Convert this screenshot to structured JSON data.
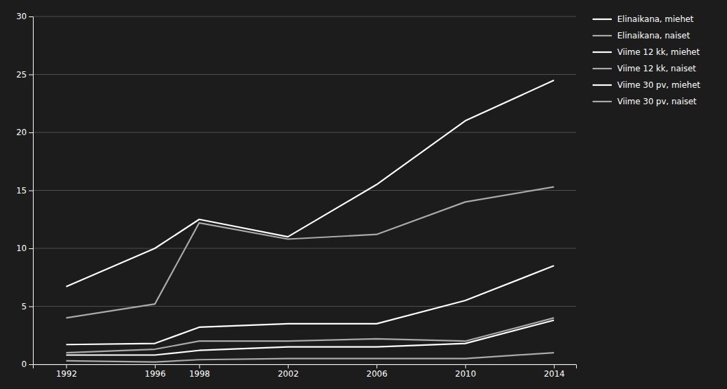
{
  "chart_data": {
    "type": "line",
    "x": [
      1992,
      1996,
      1998,
      2002,
      2006,
      2010,
      2014
    ],
    "series": [
      {
        "name": "Elinaikana, miehet",
        "color": "#ffffff",
        "values": [
          6.7,
          10.0,
          12.5,
          11.0,
          15.5,
          21.0,
          24.5
        ]
      },
      {
        "name": "Elinaikana, naiset",
        "color": "#aaaaaa",
        "values": [
          4.0,
          5.2,
          12.2,
          10.8,
          11.2,
          14.0,
          15.3
        ]
      },
      {
        "name": "Viime 12 kk, miehet",
        "color": "#ffffff",
        "values": [
          1.7,
          1.8,
          3.2,
          3.5,
          3.5,
          5.5,
          8.5
        ]
      },
      {
        "name": "Viime 12 kk, naiset",
        "color": "#aaaaaa",
        "values": [
          1.0,
          1.3,
          2.0,
          2.0,
          2.2,
          2.0,
          4.0
        ]
      },
      {
        "name": "Viime 30 pv, miehet",
        "color": "#ffffff",
        "values": [
          0.8,
          0.8,
          1.2,
          1.5,
          1.5,
          1.8,
          3.8
        ]
      },
      {
        "name": "Viime 30 pv, naiset",
        "color": "#aaaaaa",
        "values": [
          0.3,
          0.2,
          0.4,
          0.5,
          0.5,
          0.5,
          1.0
        ]
      }
    ],
    "xlim": [
      1990.5,
      2015.0
    ],
    "xticks": [
      1992,
      1996,
      1998,
      2002,
      2006,
      2010,
      2014
    ],
    "ylim": [
      0,
      30
    ],
    "yticks": [
      0,
      5,
      10,
      15,
      20,
      25,
      30
    ],
    "grid": true,
    "legend": "right"
  }
}
